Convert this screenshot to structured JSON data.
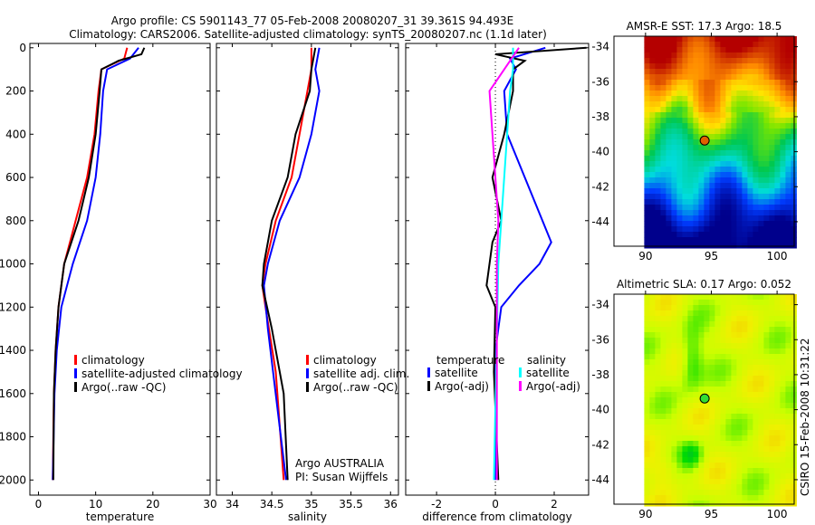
{
  "title_line1": "Argo profile: CS 5901143_77 05-Feb-2008 20080207_31 39.361S 94.493E",
  "title_line2": "Climatology: CARS2006. Satellite-adjusted climatology: synTS_20080207.nc (1.1d later)",
  "side_text": "CSIRO 15-Feb-2008 10:31:22",
  "chart_data": [
    {
      "type": "line",
      "id": "temperature",
      "xlabel": "temperature",
      "ylabel": "",
      "xlim": [
        -1.5,
        30
      ],
      "ylim": [
        2070,
        -20
      ],
      "xticks": [
        0,
        10,
        20,
        30
      ],
      "yticks": [
        0,
        200,
        400,
        600,
        800,
        1000,
        1200,
        1400,
        1600,
        1800,
        2000
      ],
      "legend": [
        "climatology",
        "satellite-adjusted climatology",
        "Argo(..raw -QC)"
      ],
      "series": [
        {
          "name": "climatology",
          "color": "#ff0000",
          "points": [
            [
              15.5,
              0
            ],
            [
              15,
              50
            ],
            [
              11,
              100
            ],
            [
              10.5,
              200
            ],
            [
              9.8,
              400
            ],
            [
              8.5,
              600
            ],
            [
              6.5,
              800
            ],
            [
              4.5,
              1000
            ],
            [
              3.5,
              1200
            ],
            [
              3,
              1400
            ],
            [
              2.7,
              1600
            ],
            [
              2.5,
              2000
            ]
          ]
        },
        {
          "name": "satellite-adjusted climatology",
          "color": "#0000ff",
          "points": [
            [
              17.5,
              0
            ],
            [
              16,
              50
            ],
            [
              12,
              100
            ],
            [
              11.3,
              200
            ],
            [
              10.8,
              400
            ],
            [
              10,
              600
            ],
            [
              8.5,
              800
            ],
            [
              6,
              1000
            ],
            [
              4,
              1200
            ],
            [
              3.2,
              1400
            ],
            [
              2.8,
              1600
            ],
            [
              2.5,
              2000
            ]
          ]
        },
        {
          "name": "Argo(..raw -QC)",
          "color": "#000000",
          "points": [
            [
              18.5,
              0
            ],
            [
              18,
              30
            ],
            [
              14,
              60
            ],
            [
              11,
              100
            ],
            [
              10.7,
              200
            ],
            [
              10,
              400
            ],
            [
              8.8,
              600
            ],
            [
              7,
              800
            ],
            [
              4.5,
              1000
            ],
            [
              3.5,
              1200
            ],
            [
              3,
              1400
            ],
            [
              2.7,
              1600
            ],
            [
              2.6,
              2000
            ]
          ]
        }
      ]
    },
    {
      "type": "line",
      "id": "salinity",
      "xlabel": "salinity",
      "xlim": [
        33.8,
        36.1
      ],
      "ylim": [
        2070,
        -20
      ],
      "xticks": [
        34,
        34.5,
        35,
        35.5,
        36
      ],
      "legend": [
        "climatology",
        "satellite adj. clim.",
        "Argo(..raw -QC)"
      ],
      "annotation": [
        "Argo AUSTRALIA",
        "PI: Susan Wijffels"
      ],
      "series": [
        {
          "name": "climatology",
          "color": "#ff0000",
          "points": [
            [
              35.0,
              0
            ],
            [
              35.0,
              100
            ],
            [
              34.95,
              200
            ],
            [
              34.85,
              400
            ],
            [
              34.75,
              600
            ],
            [
              34.55,
              800
            ],
            [
              34.42,
              1000
            ],
            [
              34.38,
              1100
            ],
            [
              34.42,
              1200
            ],
            [
              34.55,
              1500
            ],
            [
              34.65,
              2000
            ]
          ]
        },
        {
          "name": "satellite adj. clim.",
          "color": "#0000ff",
          "points": [
            [
              35.1,
              0
            ],
            [
              35.05,
              100
            ],
            [
              35.1,
              200
            ],
            [
              35.0,
              400
            ],
            [
              34.85,
              600
            ],
            [
              34.6,
              800
            ],
            [
              34.45,
              1000
            ],
            [
              34.4,
              1100
            ],
            [
              34.45,
              1300
            ],
            [
              34.68,
              2000
            ]
          ]
        },
        {
          "name": "Argo(..raw -QC)",
          "color": "#000000",
          "points": [
            [
              35.05,
              0
            ],
            [
              35.0,
              100
            ],
            [
              34.98,
              200
            ],
            [
              34.8,
              400
            ],
            [
              34.7,
              600
            ],
            [
              34.5,
              800
            ],
            [
              34.4,
              1000
            ],
            [
              34.38,
              1100
            ],
            [
              34.5,
              1300
            ],
            [
              34.65,
              1600
            ],
            [
              34.7,
              2000
            ]
          ]
        }
      ]
    },
    {
      "type": "line",
      "id": "difference",
      "xlabel": "difference from climatology",
      "xlim": [
        -3.05,
        3.17
      ],
      "ylim": [
        2070,
        -20
      ],
      "xticks": [
        -2,
        0,
        2
      ],
      "legend_headers": [
        "temperature",
        "salinity"
      ],
      "legend": [
        "satellite",
        "Argo(-adj)",
        "satellite",
        "Argo(-adj)"
      ],
      "series": [
        {
          "name": "temperature satellite",
          "color": "#0000ff",
          "points": [
            [
              1.7,
              0
            ],
            [
              0.5,
              50
            ],
            [
              0.7,
              100
            ],
            [
              0.3,
              200
            ],
            [
              0.4,
              400
            ],
            [
              1.0,
              600
            ],
            [
              1.6,
              800
            ],
            [
              1.9,
              900
            ],
            [
              1.5,
              1000
            ],
            [
              0.8,
              1100
            ],
            [
              0.2,
              1200
            ],
            [
              0,
              1400
            ],
            [
              0,
              2000
            ]
          ]
        },
        {
          "name": "temperature Argo(-adj)",
          "color": "#000000",
          "points": [
            [
              3.1,
              0
            ],
            [
              0,
              30
            ],
            [
              1,
              60
            ],
            [
              0.6,
              100
            ],
            [
              0.6,
              200
            ],
            [
              0.3,
              400
            ],
            [
              -0.1,
              600
            ],
            [
              0.2,
              800
            ],
            [
              -0.1,
              900
            ],
            [
              -0.2,
              1000
            ],
            [
              -0.3,
              1100
            ],
            [
              0,
              1200
            ],
            [
              -0.05,
              1500
            ],
            [
              0.1,
              2000
            ]
          ]
        },
        {
          "name": "salinity satellite",
          "color": "#00ffff",
          "points": [
            [
              0.6,
              0
            ],
            [
              0.6,
              100
            ],
            [
              0.5,
              200
            ],
            [
              0.4,
              400
            ],
            [
              0.3,
              600
            ],
            [
              0.1,
              1000
            ],
            [
              -0.05,
              2000
            ]
          ]
        },
        {
          "name": "salinity Argo(-adj)",
          "color": "#ff00ff",
          "points": [
            [
              0.8,
              0
            ],
            [
              0.3,
              100
            ],
            [
              -0.2,
              200
            ],
            [
              -0.1,
              400
            ],
            [
              0,
              600
            ],
            [
              0.1,
              800
            ],
            [
              0.05,
              1000
            ],
            [
              0.05,
              2000
            ]
          ]
        }
      ]
    },
    {
      "type": "heatmap",
      "id": "sst-map",
      "title": "AMSR-E SST: 17.3 Argo: 18.5",
      "xlim": [
        87.6,
        101.3
      ],
      "ylim": [
        -45.4,
        -33.4
      ],
      "xticks": [
        90,
        95,
        100
      ],
      "yticks": [
        -34,
        -36,
        -38,
        -40,
        -42,
        -44
      ],
      "marker": [
        94.493,
        -39.361
      ]
    },
    {
      "type": "heatmap",
      "id": "sla-map",
      "title": "Altimetric SLA: 0.17 Argo: 0.052",
      "xlim": [
        87.6,
        101.3
      ],
      "ylim": [
        -45.4,
        -33.4
      ],
      "xticks": [
        90,
        95,
        100
      ],
      "yticks": [
        -34,
        -36,
        -38,
        -40,
        -42,
        -44
      ],
      "marker": [
        94.493,
        -39.361
      ]
    }
  ]
}
